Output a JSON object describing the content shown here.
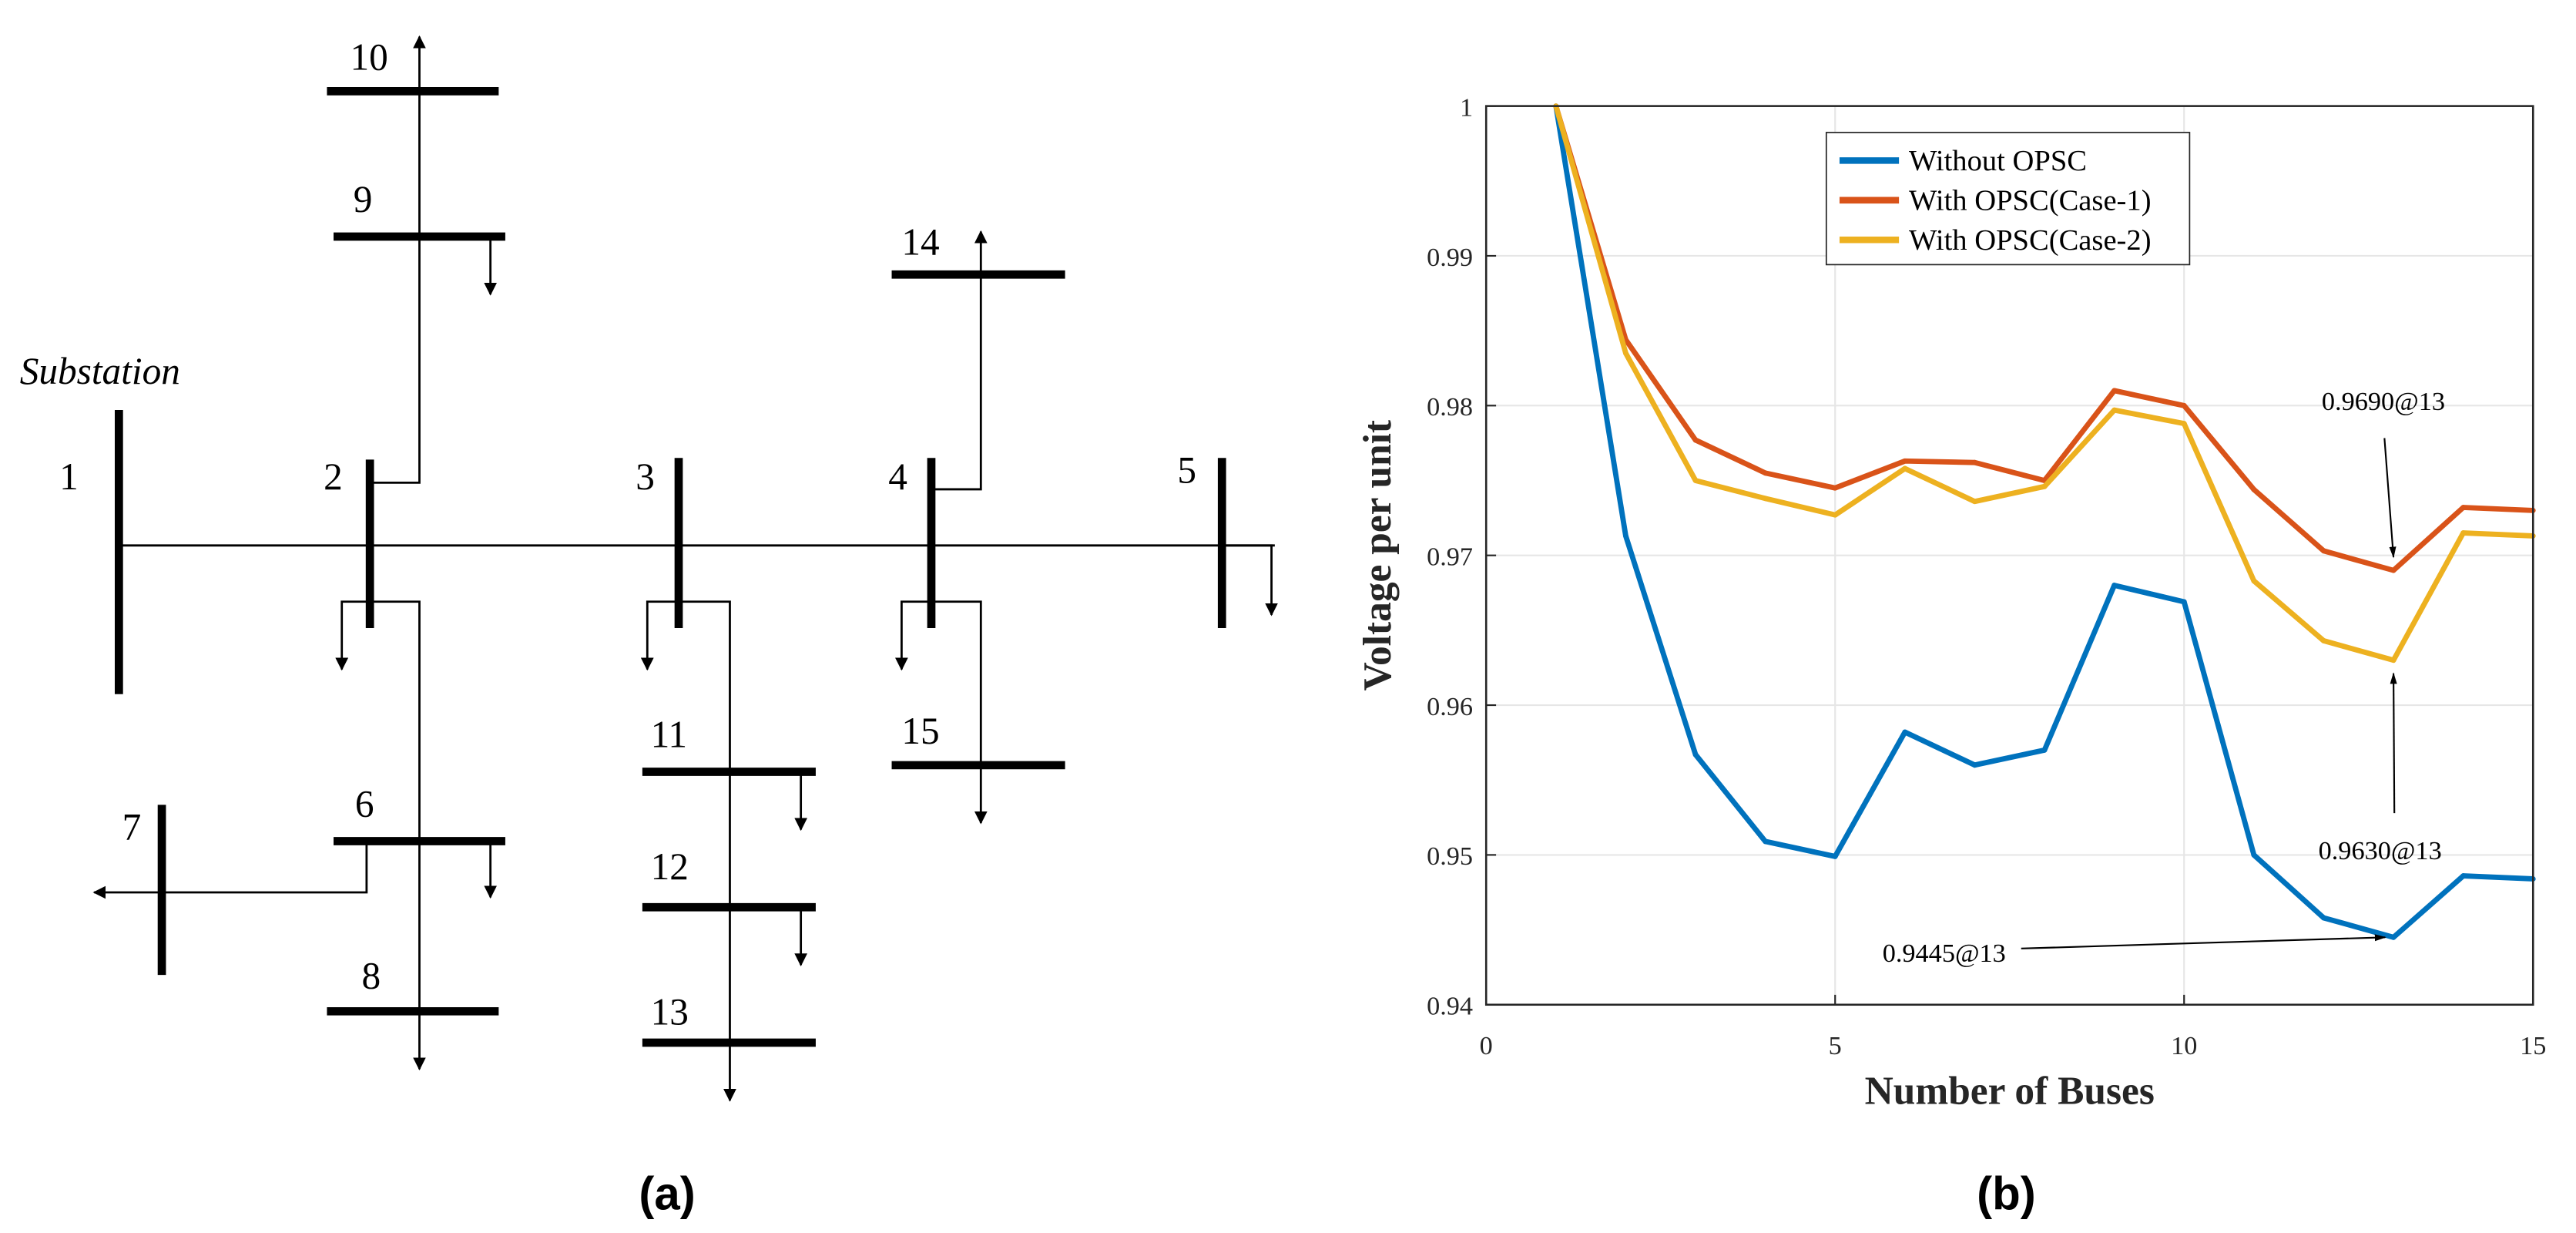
{
  "panel_a": {
    "caption": "(a)",
    "substation_label": "Substation",
    "bus_labels": {
      "b1": "1",
      "b2": "2",
      "b3": "3",
      "b4": "4",
      "b5": "5",
      "b6": "6",
      "b7": "7",
      "b8": "8",
      "b9": "9",
      "b10": "10",
      "b11": "11",
      "b12": "12",
      "b13": "13",
      "b14": "14",
      "b15": "15"
    }
  },
  "panel_b": {
    "caption": "(b)"
  },
  "chart_data": {
    "type": "line",
    "title": "",
    "xlabel": "Number of Buses",
    "ylabel": "Voltage per unit",
    "xlim": [
      0,
      15
    ],
    "ylim": [
      0.94,
      1.0
    ],
    "xticks": [
      "0",
      "5",
      "10",
      "15"
    ],
    "yticks": [
      "0.94",
      "0.95",
      "0.96",
      "0.97",
      "0.98",
      "0.99",
      "1"
    ],
    "grid": true,
    "legend_position": "top-center",
    "x": [
      1,
      2,
      3,
      4,
      5,
      6,
      7,
      8,
      9,
      10,
      11,
      12,
      13,
      14,
      15
    ],
    "series": [
      {
        "name": "Without OPSC",
        "color": "#0072BD",
        "values": [
          1.0,
          0.9713,
          0.9567,
          0.9509,
          0.9499,
          0.9582,
          0.956,
          0.957,
          0.968,
          0.9669,
          0.95,
          0.9458,
          0.9445,
          0.9486,
          0.9484
        ]
      },
      {
        "name": "With OPSC(Case-1)",
        "color": "#D95319",
        "values": [
          1.0,
          0.9844,
          0.9777,
          0.9755,
          0.9745,
          0.9763,
          0.9762,
          0.975,
          0.981,
          0.98,
          0.9744,
          0.9703,
          0.969,
          0.9732,
          0.973
        ]
      },
      {
        "name": "With OPSC(Case-2)",
        "color": "#EDB120",
        "values": [
          1.0,
          0.9835,
          0.975,
          0.9738,
          0.9727,
          0.9758,
          0.9736,
          0.9746,
          0.9797,
          0.9788,
          0.9683,
          0.9643,
          0.963,
          0.9715,
          0.9713
        ]
      }
    ],
    "annotations": [
      {
        "text": "0.9690@13",
        "x": 13,
        "y": 0.969
      },
      {
        "text": "0.9630@13",
        "x": 13,
        "y": 0.963
      },
      {
        "text": "0.9445@13",
        "x": 13,
        "y": 0.9445
      }
    ]
  }
}
